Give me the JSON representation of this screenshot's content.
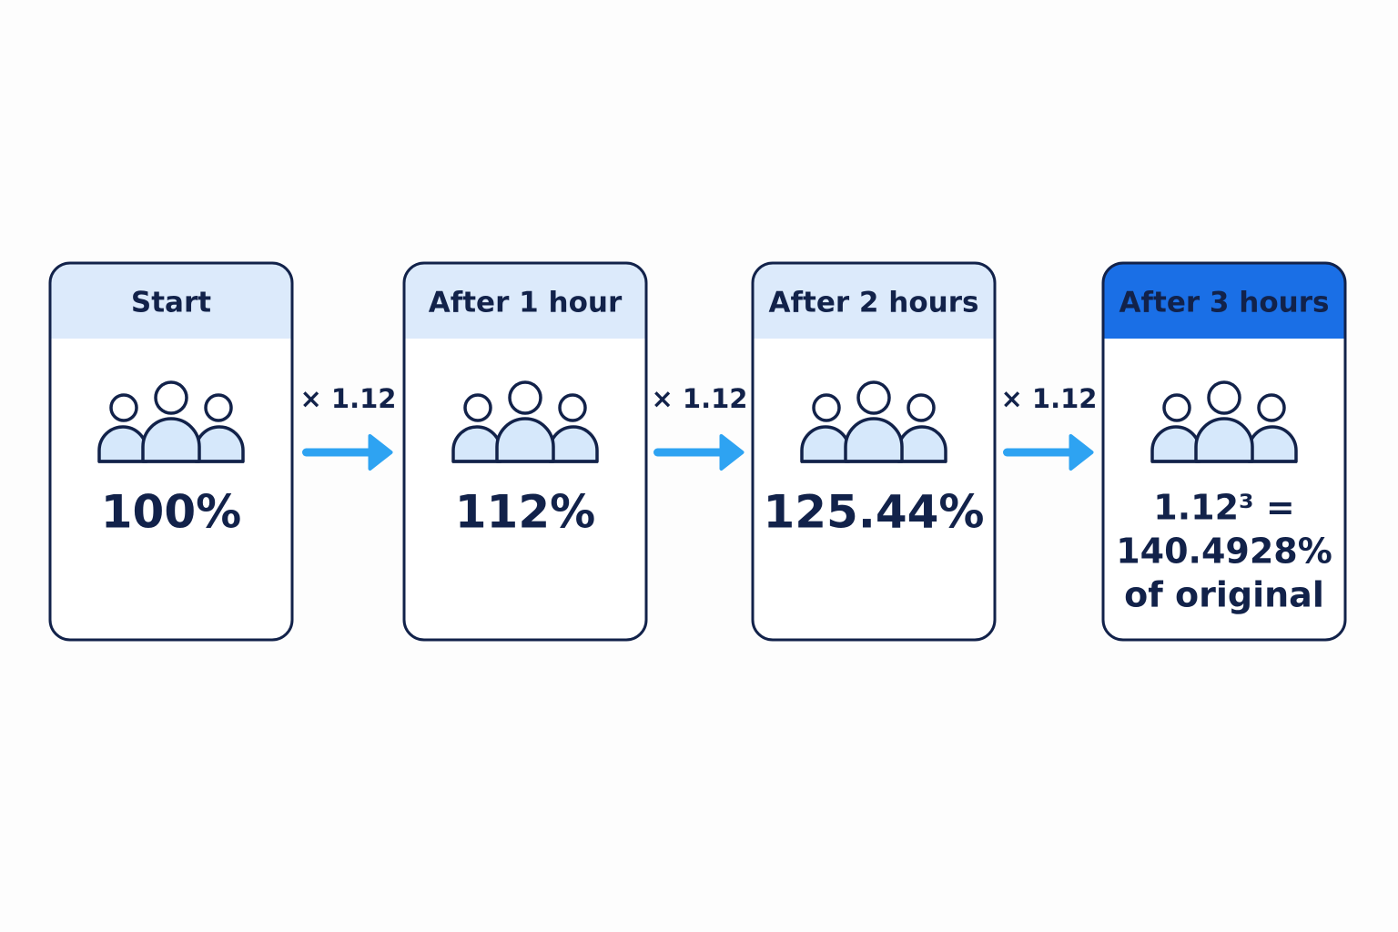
{
  "cards": [
    {
      "title": "Start",
      "lines": [
        "100%"
      ]
    },
    {
      "title": "After 1 hour",
      "lines": [
        "112%"
      ]
    },
    {
      "title": "After 2 hours",
      "lines": [
        "125.44%"
      ]
    },
    {
      "title": "After 3 hours",
      "lines": [
        "1.12³ =",
        "140.4928%",
        "of original"
      ]
    }
  ],
  "arrows": [
    {
      "label": "× 1.12"
    },
    {
      "label": "× 1.12"
    },
    {
      "label": "× 1.12"
    }
  ]
}
